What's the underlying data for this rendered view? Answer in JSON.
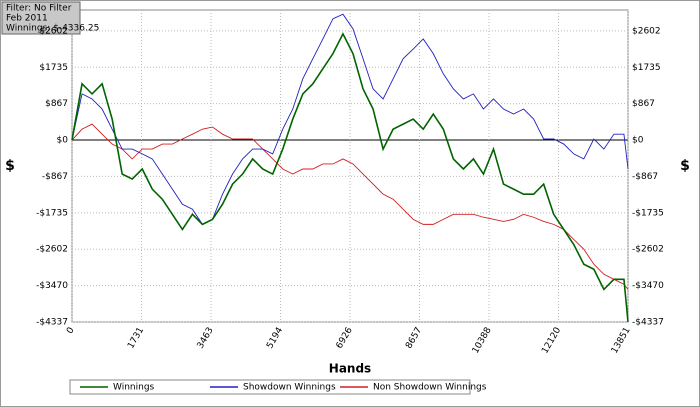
{
  "chart_data": {
    "type": "line",
    "annotations": [
      "Filter: No Filter",
      "Feb 2011",
      "Winnings: $-4336.25"
    ],
    "xlabel": "Hands",
    "ylabel": "$",
    "x": [
      0,
      250,
      500,
      750,
      1000,
      1250,
      1500,
      1750,
      2000,
      2250,
      2500,
      2750,
      3000,
      3250,
      3500,
      3750,
      4000,
      4250,
      4500,
      4750,
      5000,
      5250,
      5500,
      5750,
      6000,
      6250,
      6500,
      6750,
      7000,
      7250,
      7500,
      7750,
      8000,
      8250,
      8500,
      8750,
      9000,
      9250,
      9500,
      9750,
      10000,
      10250,
      10500,
      10750,
      11000,
      11250,
      11500,
      11750,
      12000,
      12250,
      12500,
      12750,
      13000,
      13250,
      13500,
      13750,
      13851
    ],
    "series": [
      {
        "name": "Winnings",
        "color": "#006400",
        "values": [
          0,
          1340,
          1100,
          1340,
          500,
          -810,
          -930,
          -690,
          -1170,
          -1410,
          -1770,
          -2130,
          -1770,
          -2010,
          -1890,
          -1530,
          -1050,
          -810,
          -450,
          -690,
          -810,
          -215,
          500,
          1100,
          1340,
          1700,
          2060,
          2530,
          2060,
          1220,
          740,
          -215,
          260,
          380,
          500,
          260,
          620,
          260,
          -450,
          -690,
          -450,
          -810,
          -215,
          -1050,
          -1170,
          -1290,
          -1290,
          -1050,
          -1770,
          -2130,
          -2490,
          -2960,
          -3080,
          -3560,
          -3320,
          -3320,
          -4336
        ]
      },
      {
        "name": "Showdown Winnings",
        "color": "#2020c0",
        "values": [
          0,
          1100,
          980,
          740,
          260,
          -215,
          -215,
          -330,
          -450,
          -810,
          -1170,
          -1530,
          -1650,
          -2010,
          -1890,
          -1290,
          -810,
          -450,
          -215,
          -215,
          -330,
          260,
          740,
          1460,
          1940,
          2410,
          2890,
          3000,
          2650,
          1940,
          1220,
          980,
          1460,
          1940,
          2170,
          2410,
          2060,
          1580,
          1220,
          980,
          1100,
          740,
          980,
          740,
          620,
          740,
          500,
          25,
          25,
          -95,
          -330,
          -450,
          25,
          -215,
          140,
          140,
          -690
        ]
      },
      {
        "name": "Non Showdown Winnings",
        "color": "#d02020",
        "values": [
          0,
          260,
          380,
          140,
          -95,
          -215,
          -450,
          -215,
          -215,
          -95,
          -95,
          25,
          140,
          260,
          310,
          140,
          25,
          25,
          25,
          -215,
          -450,
          -690,
          -810,
          -690,
          -690,
          -570,
          -570,
          -450,
          -570,
          -810,
          -1050,
          -1290,
          -1410,
          -1650,
          -1890,
          -2010,
          -2010,
          -1890,
          -1770,
          -1770,
          -1770,
          -1840,
          -1890,
          -1940,
          -1890,
          -1770,
          -1840,
          -1940,
          -2010,
          -2130,
          -2370,
          -2600,
          -2960,
          -3200,
          -3320,
          -3440,
          -3560
        ]
      }
    ],
    "xlim": [
      0,
      13851
    ],
    "xticks": [
      0,
      1731,
      3463,
      5194,
      6926,
      8657,
      10388,
      12120,
      13851
    ],
    "ylim": [
      -4337,
      3100
    ],
    "yticks": [
      {
        "value": -4337,
        "label": "-$4337"
      },
      {
        "value": -3470,
        "label": "-$3470"
      },
      {
        "value": -2602,
        "label": "-$2602"
      },
      {
        "value": -1735,
        "label": "-$1735"
      },
      {
        "value": -867,
        "label": "-$867"
      },
      {
        "value": 0,
        "label": "$0"
      },
      {
        "value": 867,
        "label": "$867"
      },
      {
        "value": 1735,
        "label": "$1735"
      },
      {
        "value": 2602,
        "label": "$2602"
      }
    ],
    "grid": true
  }
}
